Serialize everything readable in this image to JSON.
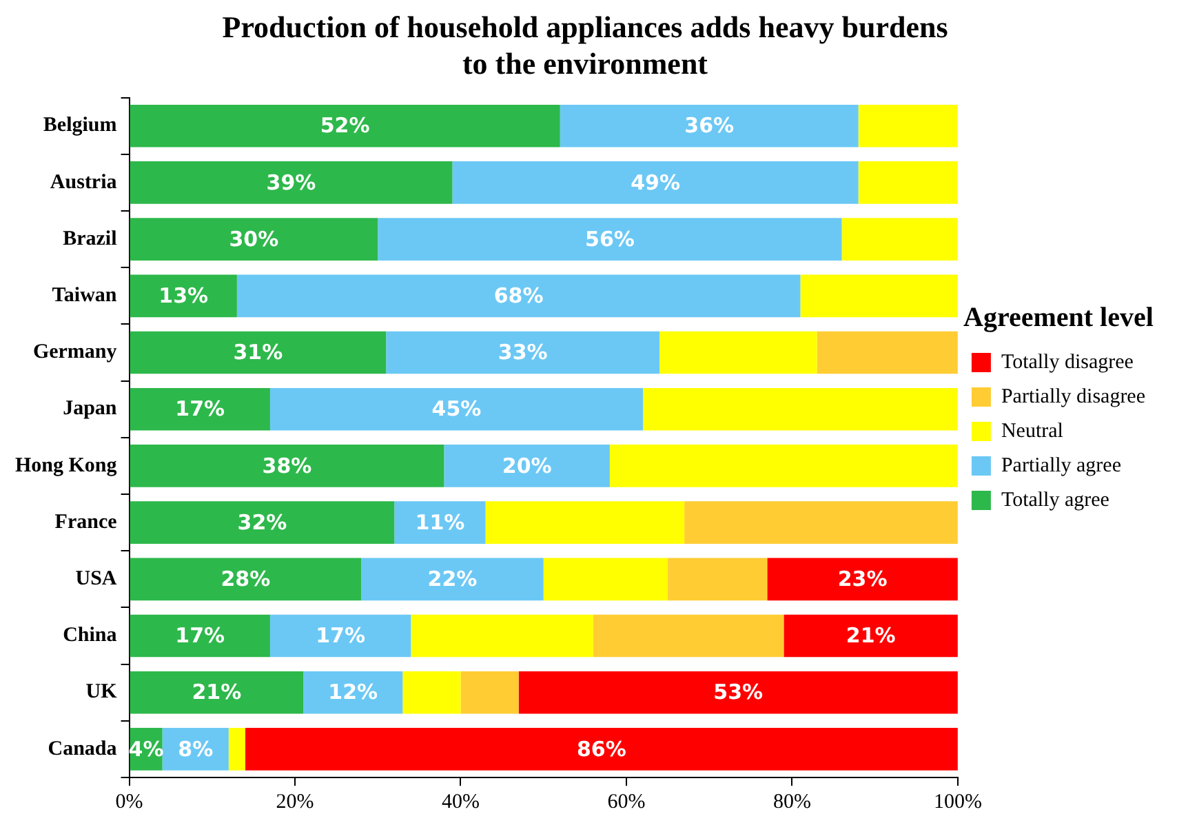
{
  "chart_data": {
    "type": "bar",
    "orientation": "horizontal",
    "stacked": true,
    "title": "Production of household appliances adds heavy burdens\nto the environment",
    "legend_title": "Agreement level",
    "legend": "right",
    "grid": false,
    "categories": [
      "Belgium",
      "Austria",
      "Brazil",
      "Taiwan",
      "Germany",
      "Japan",
      "Hong Kong",
      "France",
      "USA",
      "China",
      "UK",
      "Canada"
    ],
    "xlim": [
      0,
      100
    ],
    "xticks": [
      {
        "value": 0,
        "label": "0%"
      },
      {
        "value": 20,
        "label": "20%"
      },
      {
        "value": 40,
        "label": "40%"
      },
      {
        "value": 60,
        "label": "60%"
      },
      {
        "value": 80,
        "label": "80%"
      },
      {
        "value": 100,
        "label": "100%"
      }
    ],
    "series": [
      {
        "name": "Totally agree",
        "color": "#2db84b",
        "values": [
          52,
          39,
          30,
          13,
          31,
          17,
          38,
          32,
          28,
          17,
          21,
          4
        ],
        "value_labels": [
          "52%",
          "39%",
          "30%",
          "13%",
          "31%",
          "17%",
          "38%",
          "32%",
          "28%",
          "17%",
          "21%",
          "4%"
        ]
      },
      {
        "name": "Partially agree",
        "color": "#6bc8f5",
        "values": [
          36,
          49,
          56,
          68,
          33,
          45,
          20,
          11,
          22,
          17,
          12,
          8
        ],
        "value_labels": [
          "36%",
          "49%",
          "56%",
          "68%",
          "33%",
          "45%",
          "20%",
          "11%",
          "22%",
          "17%",
          "12%",
          "8%"
        ]
      },
      {
        "name": "Neutral",
        "color": "#ffff00",
        "values": [
          12,
          12,
          14,
          19,
          19,
          38,
          42,
          24,
          15,
          22,
          7,
          2
        ]
      },
      {
        "name": "Partially disagree",
        "color": "#ffcc33",
        "values": [
          0,
          0,
          0,
          0,
          17,
          0,
          0,
          33,
          12,
          23,
          7,
          0
        ]
      },
      {
        "name": "Totally disagree",
        "color": "#ff0000",
        "values": [
          0,
          0,
          0,
          0,
          0,
          0,
          0,
          0,
          23,
          21,
          53,
          86
        ],
        "value_labels": [
          null,
          null,
          null,
          null,
          null,
          null,
          null,
          null,
          "23%",
          "21%",
          "53%",
          "86%"
        ]
      }
    ]
  }
}
